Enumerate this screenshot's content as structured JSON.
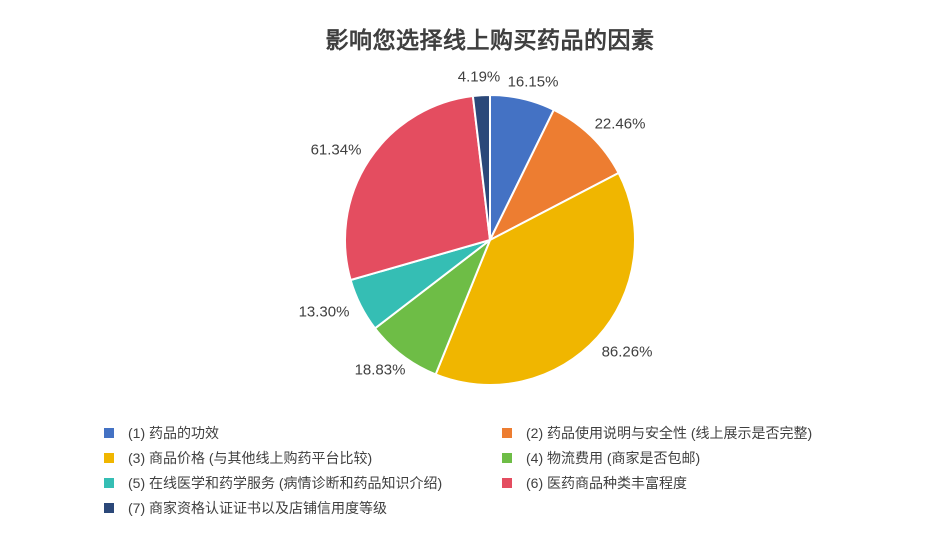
{
  "chart_data": {
    "type": "pie",
    "title": "影响您选择线上购买药品的因素",
    "legend_position": "bottom",
    "legend_columns": 2,
    "start_angle_deg": 0,
    "direction": "clockwise",
    "slices": [
      {
        "legend_label": "(1)  药品的功效",
        "value": 16.15,
        "data_label": "16.15%",
        "color": "#4472C4"
      },
      {
        "legend_label": "(2)  药品使用说明与安全性 (线上展示是否完整)",
        "value": 22.46,
        "data_label": "22.46%",
        "color": "#ED7D31"
      },
      {
        "legend_label": "(3)  商品价格 (与其他线上购药平台比较)",
        "value": 86.26,
        "data_label": "86.26%",
        "color": "#F0B600"
      },
      {
        "legend_label": "(4)  物流费用 (商家是否包邮)",
        "value": 18.83,
        "data_label": "18.83%",
        "color": "#6EBD46"
      },
      {
        "legend_label": "(5)  在线医学和药学服务 (病情诊断和药品知识介绍)",
        "value": 13.3,
        "data_label": "13.30%",
        "color": "#35BEB4"
      },
      {
        "legend_label": "(6)  医药商品种类丰富程度",
        "value": 61.34,
        "data_label": "61.34%",
        "color": "#E44D60"
      },
      {
        "legend_label": "(7)  商家资格认证证书以及店铺信用度等级",
        "value": 4.19,
        "data_label": "4.19%",
        "color": "#2B4879"
      }
    ]
  }
}
